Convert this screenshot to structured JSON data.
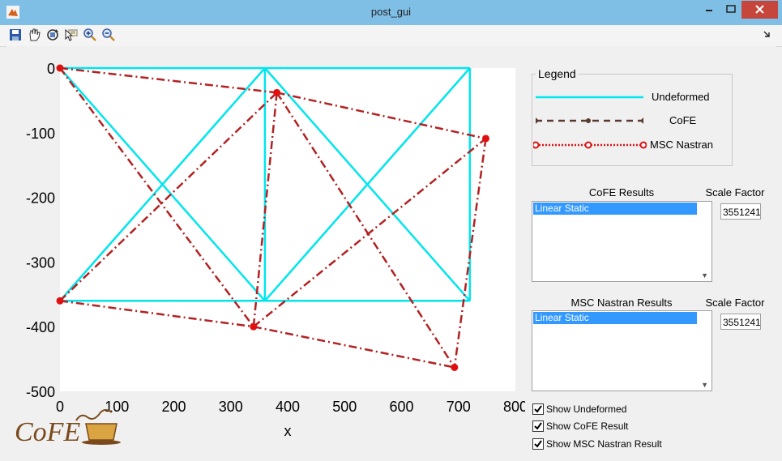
{
  "window": {
    "title": "post_gui"
  },
  "toolbar": {
    "tools": [
      "save-icon",
      "pan-icon",
      "rotate-icon",
      "data-cursor-icon",
      "zoom-in-icon",
      "zoom-out-icon"
    ]
  },
  "plot": {
    "xlabel": "x",
    "xlim": [
      0,
      800
    ],
    "ylim": [
      -500,
      0
    ],
    "xticks": [
      "0",
      "100",
      "200",
      "300",
      "400",
      "500",
      "600",
      "700",
      "800"
    ],
    "yticks": [
      "0",
      "-100",
      "-200",
      "-300",
      "-400",
      "-500"
    ],
    "colors": {
      "undeformed": "#00e5ee",
      "deformed": "#b22222"
    }
  },
  "chart_data": {
    "type": "line",
    "xlabel": "x",
    "ylabel": "",
    "xlim": [
      0,
      800
    ],
    "ylim": [
      -500,
      0
    ],
    "series": [
      {
        "name": "Undeformed",
        "segments": [
          [
            [
              0,
              0
            ],
            [
              360,
              0
            ]
          ],
          [
            [
              360,
              0
            ],
            [
              720,
              0
            ]
          ],
          [
            [
              0,
              -360
            ],
            [
              360,
              -360
            ]
          ],
          [
            [
              360,
              -360
            ],
            [
              720,
              -360
            ]
          ],
          [
            [
              360,
              0
            ],
            [
              360,
              -360
            ]
          ],
          [
            [
              720,
              0
            ],
            [
              720,
              -360
            ]
          ],
          [
            [
              0,
              0
            ],
            [
              360,
              -360
            ]
          ],
          [
            [
              0,
              -360
            ],
            [
              360,
              0
            ]
          ],
          [
            [
              360,
              0
            ],
            [
              720,
              -360
            ]
          ],
          [
            [
              360,
              -360
            ],
            [
              720,
              0
            ]
          ]
        ]
      },
      {
        "name": "MSC Nastran",
        "segments": [
          [
            [
              0,
              0
            ],
            [
              381,
              -38
            ]
          ],
          [
            [
              381,
              -38
            ],
            [
              748,
              -109
            ]
          ],
          [
            [
              0,
              -360
            ],
            [
              340,
              -400
            ]
          ],
          [
            [
              340,
              -400
            ],
            [
              693,
              -463
            ]
          ],
          [
            [
              381,
              -38
            ],
            [
              340,
              -400
            ]
          ],
          [
            [
              748,
              -109
            ],
            [
              693,
              -463
            ]
          ],
          [
            [
              0,
              0
            ],
            [
              340,
              -400
            ]
          ],
          [
            [
              0,
              -360
            ],
            [
              381,
              -38
            ]
          ],
          [
            [
              381,
              -38
            ],
            [
              693,
              -463
            ]
          ],
          [
            [
              340,
              -400
            ],
            [
              748,
              -109
            ]
          ]
        ],
        "nodes": [
          [
            0,
            0
          ],
          [
            381,
            -38
          ],
          [
            748,
            -109
          ],
          [
            0,
            -360
          ],
          [
            340,
            -400
          ],
          [
            693,
            -463
          ]
        ]
      }
    ]
  },
  "logo": {
    "text": "CoFE"
  },
  "legend": {
    "title": "Legend",
    "items": [
      {
        "label": "Undeformed"
      },
      {
        "label": "CoFE"
      },
      {
        "label": "MSC Nastran"
      }
    ]
  },
  "cofe_results": {
    "label": "CoFE Results",
    "items": [
      "Linear Static"
    ],
    "scale_label": "Scale Factor",
    "scale_value": "3551241"
  },
  "msc_results": {
    "label": "MSC Nastran Results",
    "items": [
      "Linear Static"
    ],
    "scale_label": "Scale Factor",
    "scale_value": "3551241"
  },
  "options": {
    "show_undeformed": "Show Undeformed",
    "show_cofe": "Show CoFE Result",
    "show_msc": "Show MSC Nastran Result"
  }
}
